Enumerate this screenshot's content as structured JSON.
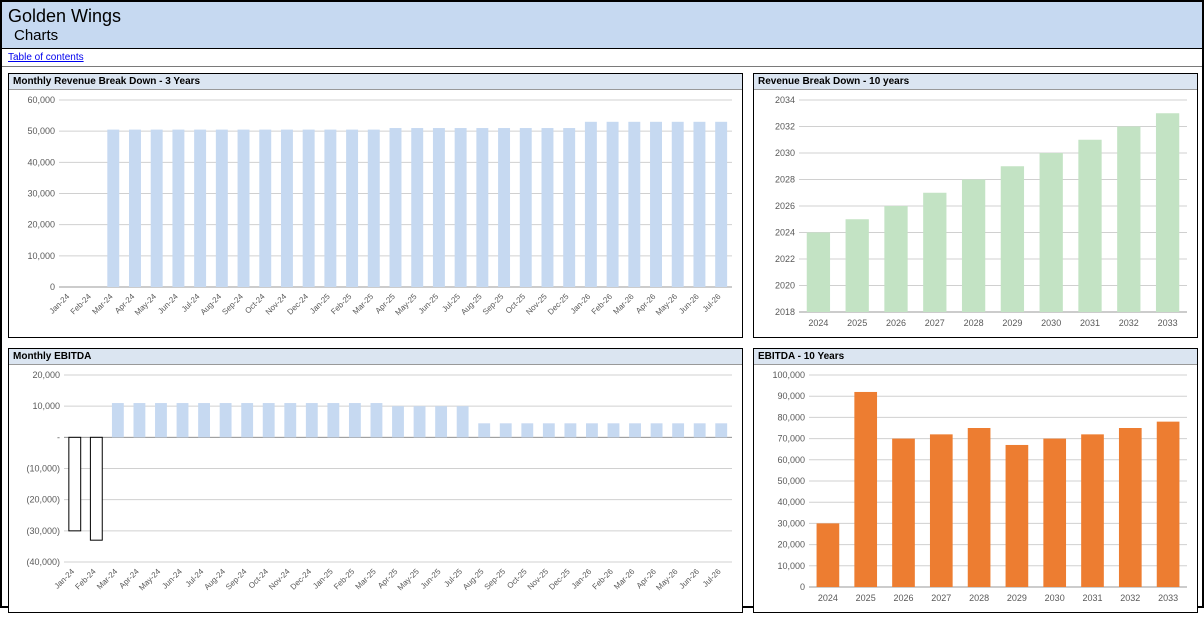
{
  "header": {
    "title": "Golden Wings",
    "subtitle": "Charts"
  },
  "toc": {
    "label": "Table of contents"
  },
  "chart_monthly_revenue": {
    "title": "Monthly Revenue Break Down - 3 Years",
    "type": "bar",
    "categories": [
      "Jan-24",
      "Feb-24",
      "Mar-24",
      "Apr-24",
      "May-24",
      "Jun-24",
      "Jul-24",
      "Aug-24",
      "Sep-24",
      "Oct-24",
      "Nov-24",
      "Dec-24",
      "Jan-25",
      "Feb-25",
      "Mar-25",
      "Apr-25",
      "May-25",
      "Jun-25",
      "Jul-25",
      "Aug-25",
      "Sep-25",
      "Oct-25",
      "Nov-25",
      "Dec-25",
      "Jan-26",
      "Feb-26",
      "Mar-26",
      "Apr-26",
      "May-26",
      "Jun-26",
      "Jul-26"
    ],
    "values": [
      0,
      0,
      50500,
      50500,
      50500,
      50500,
      50500,
      50500,
      50500,
      50500,
      50500,
      50500,
      50500,
      50500,
      50500,
      51000,
      51000,
      51000,
      51000,
      51000,
      51000,
      51000,
      51000,
      51000,
      53000,
      53000,
      53000,
      53000,
      53000,
      53000,
      53000
    ],
    "bar_color": "#c6d9f1",
    "ylim": [
      0,
      60000
    ],
    "ytick_step": 10000,
    "ytick_format": "comma",
    "y_tick_labels": [
      "0",
      "10,000",
      "20,000",
      "30,000",
      "40,000",
      "50,000",
      "60,000"
    ],
    "label_fontsize": 9,
    "xaxis_rotation": -45,
    "gridline_color": "#d0d0d0",
    "background_color": "#ffffff"
  },
  "chart_revenue_10yr": {
    "title": "Revenue Break Down - 10 years",
    "type": "bar",
    "categories": [
      "2024",
      "2025",
      "2026",
      "2027",
      "2028",
      "2029",
      "2030",
      "2031",
      "2032",
      "2033"
    ],
    "values": [
      2024,
      2025,
      2026,
      2027,
      2028,
      2029,
      2030,
      2031,
      2032,
      2033
    ],
    "bar_color": "#c3e3c4",
    "ylim": [
      2018,
      2034
    ],
    "ytick_step": 2,
    "y_tick_labels": [
      "2018",
      "2020",
      "2022",
      "2024",
      "2026",
      "2028",
      "2030",
      "2032",
      "2034"
    ],
    "label_fontsize": 9,
    "gridline_color": "#d0d0d0",
    "background_color": "#ffffff"
  },
  "chart_monthly_ebitda": {
    "title": "Monthly EBITDA",
    "type": "bar",
    "categories": [
      "Jan-24",
      "Feb-24",
      "Mar-24",
      "Apr-24",
      "May-24",
      "Jun-24",
      "Jul-24",
      "Aug-24",
      "Sep-24",
      "Oct-24",
      "Nov-24",
      "Dec-24",
      "Jan-25",
      "Feb-25",
      "Mar-25",
      "Apr-25",
      "May-25",
      "Jun-25",
      "Jul-25",
      "Aug-25",
      "Sep-25",
      "Oct-25",
      "Nov-25",
      "Dec-25",
      "Jan-26",
      "Feb-26",
      "Mar-26",
      "Apr-26",
      "May-26",
      "Jun-26",
      "Jul-26"
    ],
    "values": [
      -30000,
      -33000,
      11000,
      11000,
      11000,
      11000,
      11000,
      11000,
      11000,
      11000,
      11000,
      11000,
      11000,
      11000,
      11000,
      10000,
      10000,
      10000,
      10000,
      4500,
      4500,
      4500,
      4500,
      4500,
      4500,
      4500,
      4500,
      4500,
      4500,
      4500,
      4500
    ],
    "positive_color": "#c6d9f1",
    "negative_fill": "#ffffff",
    "negative_stroke": "#000000",
    "ylim": [
      -40000,
      20000
    ],
    "ytick_step": 10000,
    "ytick_format": "paren_comma",
    "y_tick_labels": [
      "(40,000)",
      "(30,000)",
      "(20,000)",
      "(10,000)",
      "-",
      "10,000",
      "20,000"
    ],
    "label_fontsize": 9,
    "xaxis_rotation": -45,
    "gridline_color": "#d0d0d0",
    "background_color": "#ffffff"
  },
  "chart_ebitda_10yr": {
    "title": "EBITDA - 10 Years",
    "type": "bar",
    "categories": [
      "2024",
      "2025",
      "2026",
      "2027",
      "2028",
      "2029",
      "2030",
      "2031",
      "2032",
      "2033"
    ],
    "values": [
      30000,
      92000,
      70000,
      72000,
      75000,
      67000,
      70000,
      72000,
      75000,
      78000
    ],
    "bar_color": "#ed7d31",
    "ylim": [
      0,
      100000
    ],
    "ytick_step": 10000,
    "y_tick_labels": [
      "0",
      "10,000",
      "20,000",
      "30,000",
      "40,000",
      "50,000",
      "60,000",
      "70,000",
      "80,000",
      "90,000",
      "100,000"
    ],
    "label_fontsize": 9,
    "gridline_color": "#d0d0d0",
    "background_color": "#ffffff"
  }
}
